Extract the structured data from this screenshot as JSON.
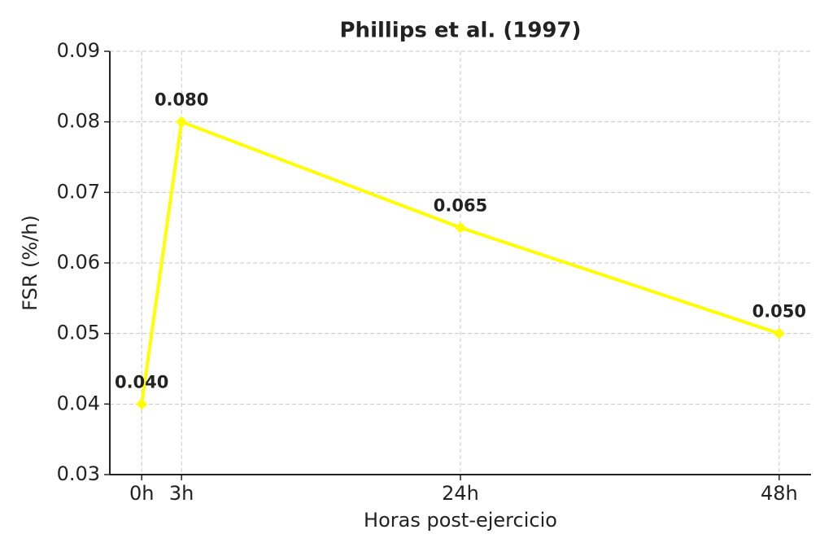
{
  "chart_data": {
    "type": "line",
    "title": "Phillips et al. (1997)",
    "x_label": "Horas post-ejercicio",
    "y_label": "FSR (%/h)",
    "x": [
      0,
      3,
      24,
      48
    ],
    "values": [
      0.04,
      0.08,
      0.065,
      0.05
    ],
    "value_labels": [
      "0.040",
      "0.080",
      "0.065",
      "0.050"
    ],
    "color": "#ffff00",
    "xlim": [
      -2.4,
      50.4
    ],
    "xticks": [
      {
        "value": 0,
        "label": "0h"
      },
      {
        "value": 3,
        "label": "3h"
      },
      {
        "value": 24,
        "label": "24h"
      },
      {
        "value": 48,
        "label": "48h"
      }
    ],
    "ylim": [
      0.03,
      0.09
    ],
    "yticks": [
      0.03,
      0.04,
      0.05,
      0.06,
      0.07,
      0.08,
      0.09
    ],
    "grid": true
  }
}
